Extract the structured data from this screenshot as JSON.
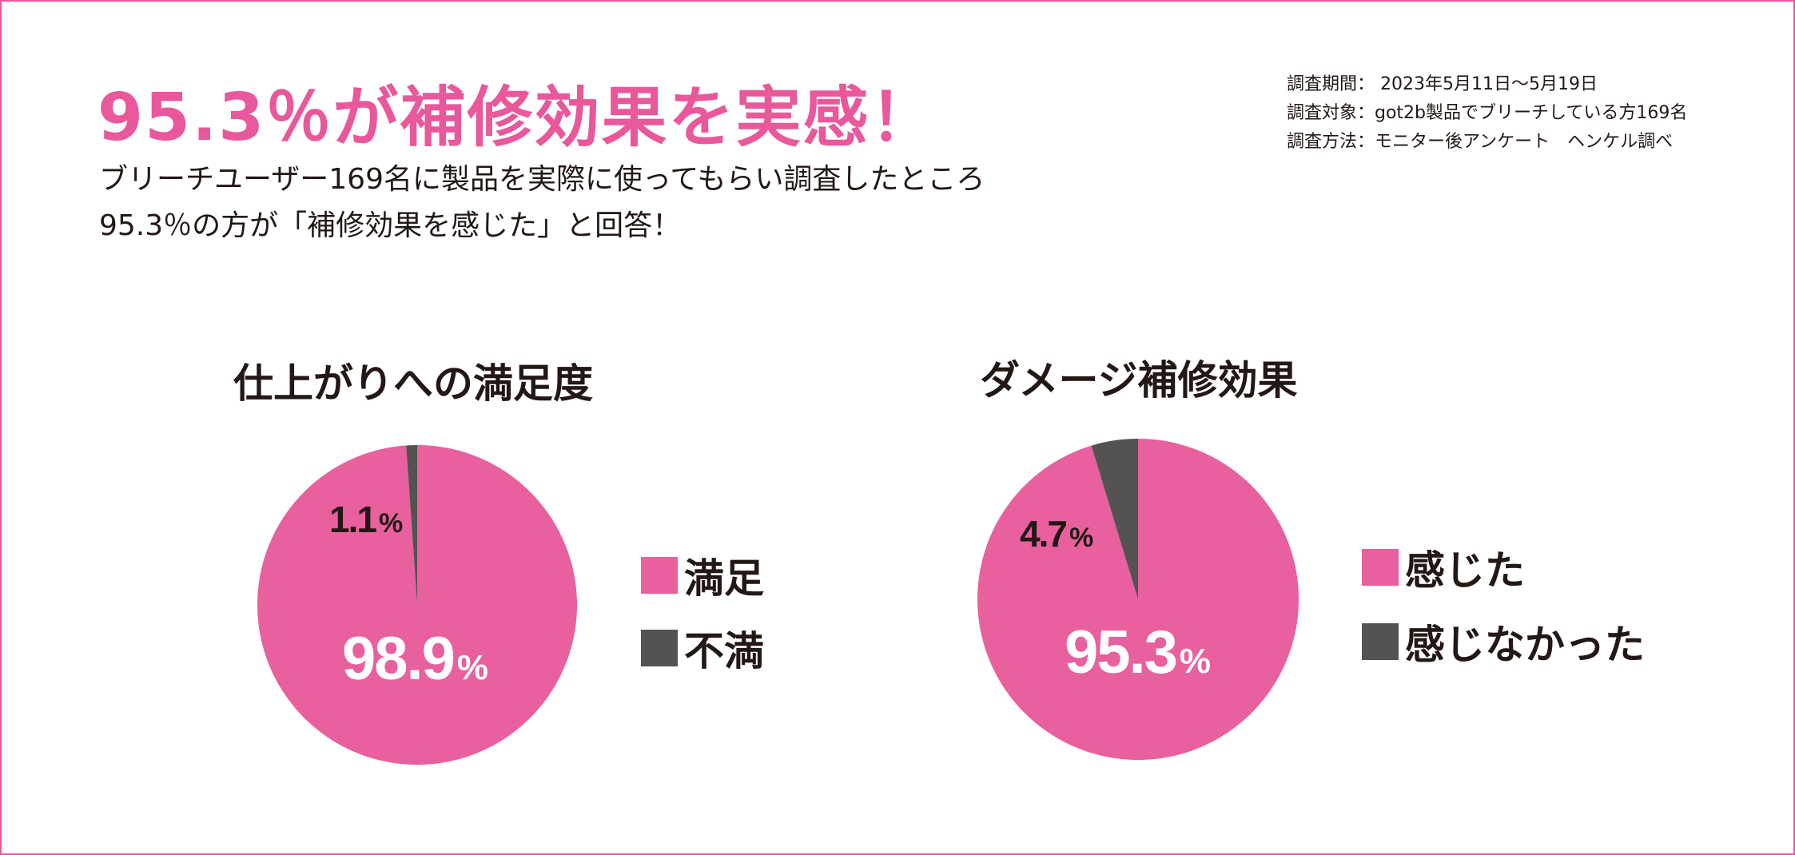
{
  "colors": {
    "pink": "#e8609d",
    "gray": "#545352",
    "accent": "#e8589a"
  },
  "headline": "95.3％が補修効果を実感！",
  "lead": {
    "line1": "ブリーチユーザー169名に製品を実際に使ってもらい調査したところ",
    "line2": "95.3％の方が「補修効果を感じた」と回答！"
  },
  "survey": {
    "period": "調査期間：  2023年5月11日〜5月19日",
    "subject": "調査対象：got2b製品でブリーチしている方169名",
    "method": "調査方法：モニター後アンケート　ヘンケル調べ"
  },
  "chart_data": [
    {
      "type": "pie",
      "title": "仕上がりへの満足度",
      "slices": [
        {
          "label": "満足",
          "value": 98.9,
          "color": "#e8609d"
        },
        {
          "label": "不満",
          "value": 1.1,
          "color": "#545352"
        }
      ],
      "value_unit": "%",
      "legend": "right"
    },
    {
      "type": "pie",
      "title": "ダメージ補修効果",
      "slices": [
        {
          "label": "感じた",
          "value": 95.3,
          "color": "#e8609d"
        },
        {
          "label": "感じなかった",
          "value": 4.7,
          "color": "#545352"
        }
      ],
      "value_unit": "%",
      "legend": "right"
    }
  ]
}
